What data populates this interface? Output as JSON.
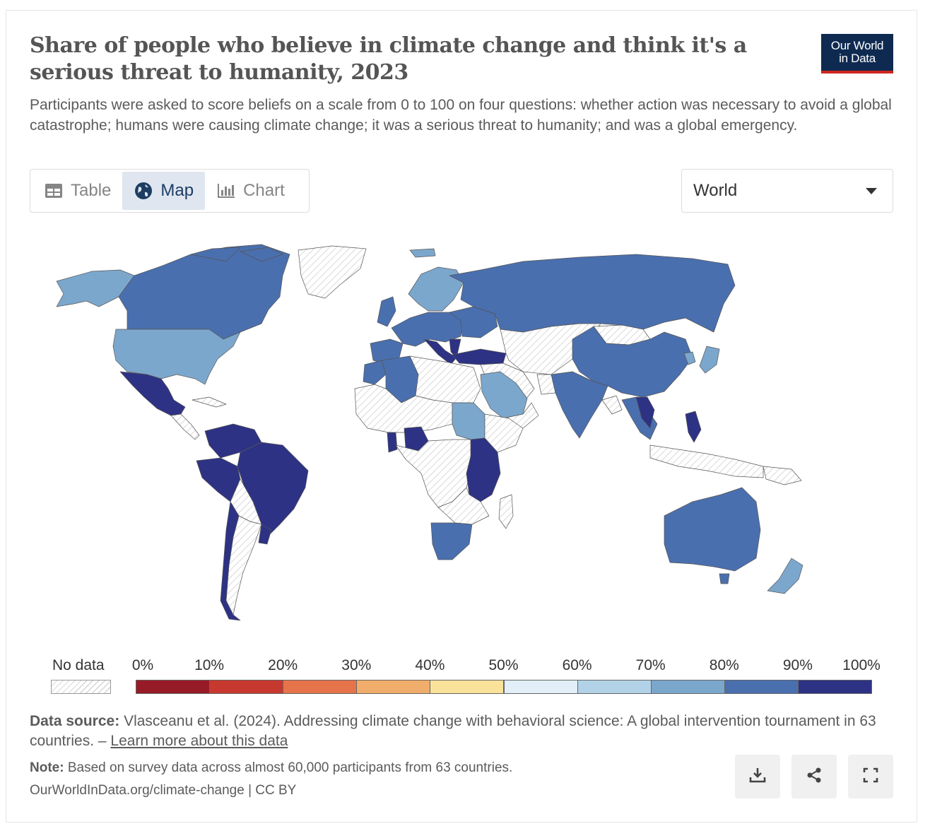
{
  "header": {
    "title": "Share of people who believe in climate change and think it's a serious threat to humanity, 2023",
    "subtitle": "Participants were asked to score beliefs on a scale from 0 to 100 on four questions: whether action was necessary to avoid a global catastrophe; humans were causing climate change; it was a serious threat to humanity; and was a global emergency.",
    "logo_line1": "Our World",
    "logo_line2": "in Data"
  },
  "tabs": [
    {
      "label": "Table",
      "icon": "table-icon",
      "active": false
    },
    {
      "label": "Map",
      "icon": "globe-icon",
      "active": true
    },
    {
      "label": "Chart",
      "icon": "bar-chart-icon",
      "active": false
    }
  ],
  "region_select": {
    "value": "World"
  },
  "legend": {
    "no_data_label": "No data",
    "ticks": [
      "0%",
      "10%",
      "20%",
      "30%",
      "40%",
      "50%",
      "60%",
      "70%",
      "80%",
      "90%",
      "100%"
    ],
    "colors": [
      "#961b26",
      "#c7392e",
      "#e6744b",
      "#f0ad6b",
      "#fae29b",
      "#e2eff8",
      "#b2d3e7",
      "#7ca7cd",
      "#4a6fae",
      "#2e3284"
    ]
  },
  "footer": {
    "source_label": "Data source:",
    "source_text": "Vlasceanu et al. (2024). Addressing climate change with behavioral science: A global intervention tournament in 63 countries. –",
    "source_link": "Learn more about this data",
    "note_label": "Note:",
    "note_text": "Based on survey data across almost 60,000 participants from 63 countries.",
    "url": "OurWorldInData.org/climate-change | CC BY"
  },
  "actions": [
    {
      "name": "download-button",
      "icon": "download-icon"
    },
    {
      "name": "share-button",
      "icon": "share-icon"
    },
    {
      "name": "fullscreen-button",
      "icon": "fullscreen-icon"
    }
  ]
}
